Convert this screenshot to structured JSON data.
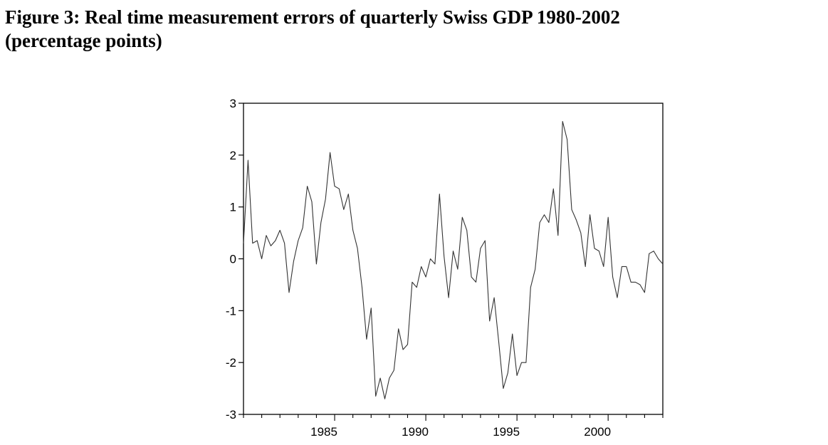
{
  "figure": {
    "title_line1": "Figure 3: Real time measurement errors of  quarterly Swiss GDP 1980-2002",
    "title_line2": "(percentage points)"
  },
  "chart_data": {
    "type": "line",
    "title": "",
    "xlabel": "",
    "ylabel": "",
    "xlim": [
      1980.0,
      2003.0
    ],
    "ylim": [
      -3,
      3
    ],
    "xticks_labeled": [
      1985,
      1990,
      1995,
      2000
    ],
    "yticks": [
      3,
      2,
      1,
      0,
      -1,
      -2,
      -3
    ],
    "grid": false,
    "line_color": "#333333",
    "series": [
      {
        "name": "",
        "x": [
          1980.0,
          1980.25,
          1980.5,
          1980.75,
          1981.0,
          1981.25,
          1981.5,
          1981.75,
          1982.0,
          1982.25,
          1982.5,
          1982.75,
          1983.0,
          1983.25,
          1983.5,
          1983.75,
          1984.0,
          1984.25,
          1984.5,
          1984.75,
          1985.0,
          1985.25,
          1985.5,
          1985.75,
          1986.0,
          1986.25,
          1986.5,
          1986.75,
          1987.0,
          1987.25,
          1987.5,
          1987.75,
          1988.0,
          1988.25,
          1988.5,
          1988.75,
          1989.0,
          1989.25,
          1989.5,
          1989.75,
          1990.0,
          1990.25,
          1990.5,
          1990.75,
          1991.0,
          1991.25,
          1991.5,
          1991.75,
          1992.0,
          1992.25,
          1992.5,
          1992.75,
          1993.0,
          1993.25,
          1993.5,
          1993.75,
          1994.0,
          1994.25,
          1994.5,
          1994.75,
          1995.0,
          1995.25,
          1995.5,
          1995.75,
          1996.0,
          1996.25,
          1996.5,
          1996.75,
          1997.0,
          1997.25,
          1997.5,
          1997.75,
          1998.0,
          1998.25,
          1998.5,
          1998.75,
          1999.0,
          1999.25,
          1999.5,
          1999.75,
          2000.0,
          2000.25,
          2000.5,
          2000.75,
          2001.0,
          2001.25,
          2001.5,
          2001.75,
          2002.0,
          2002.25,
          2002.5,
          2002.75,
          2003.0
        ],
        "y": [
          0.3,
          1.9,
          0.3,
          0.35,
          0.0,
          0.45,
          0.25,
          0.35,
          0.55,
          0.3,
          -0.65,
          -0.05,
          0.35,
          0.6,
          1.4,
          1.1,
          -0.1,
          0.7,
          1.15,
          2.05,
          1.4,
          1.35,
          0.95,
          1.25,
          0.55,
          0.2,
          -0.55,
          -1.55,
          -0.95,
          -2.65,
          -2.3,
          -2.7,
          -2.3,
          -2.15,
          -1.35,
          -1.75,
          -1.65,
          -0.45,
          -0.55,
          -0.15,
          -0.35,
          0.0,
          -0.1,
          1.25,
          0.05,
          -0.75,
          0.15,
          -0.2,
          0.8,
          0.55,
          -0.35,
          -0.45,
          0.2,
          0.35,
          -1.2,
          -0.75,
          -1.6,
          -2.5,
          -2.2,
          -1.45,
          -2.25,
          -2.0,
          -2.0,
          -0.55,
          -0.2,
          0.7,
          0.85,
          0.7,
          1.35,
          0.45,
          2.65,
          2.3,
          0.95,
          0.75,
          0.5,
          -0.15,
          0.85,
          0.2,
          0.15,
          -0.15,
          0.8,
          -0.35,
          -0.75,
          -0.15,
          -0.15,
          -0.45,
          -0.45,
          -0.5,
          -0.65,
          0.1,
          0.15,
          0.0,
          -0.1
        ]
      }
    ]
  }
}
